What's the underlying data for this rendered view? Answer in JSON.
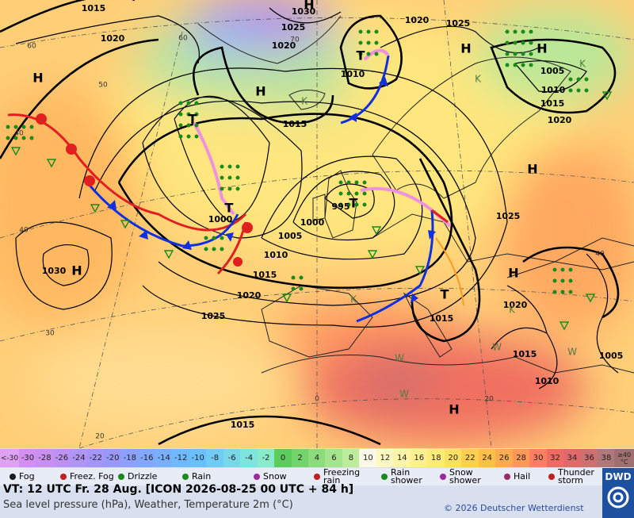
{
  "map": {
    "isobar_labels": [
      "1015",
      "1020",
      "1030",
      "1025",
      "1020",
      "1015",
      "1010",
      "1020",
      "1025",
      "1005",
      "1010",
      "1015",
      "1020",
      "1025",
      "1000",
      "995",
      "1000",
      "1005",
      "1010",
      "1015",
      "1020",
      "1025",
      "1030",
      "1015",
      "1020",
      "1015",
      "1010",
      "1005",
      "1015"
    ],
    "pressure_centers": [
      "H",
      "H",
      "T",
      "T",
      "T",
      "T",
      "H",
      "H",
      "H",
      "T",
      "H",
      "H",
      "H",
      "H"
    ],
    "grid_labels": [
      "60",
      "50",
      "40",
      "40",
      "30",
      "20",
      "0",
      "20",
      "40",
      "60",
      "70"
    ],
    "small_letters": [
      "K",
      "K",
      "K",
      "K",
      "K",
      "W",
      "W",
      "W",
      "W"
    ]
  },
  "legend": {
    "temperature_scale": {
      "low_label": "<-30",
      "values": [
        -30,
        -28,
        -26,
        -24,
        -22,
        -20,
        -18,
        -16,
        -14,
        -12,
        -10,
        -8,
        -6,
        -4,
        -2,
        0,
        2,
        4,
        6,
        8,
        10,
        12,
        14,
        16,
        18,
        20,
        22,
        24,
        26,
        28,
        30,
        32,
        34,
        36,
        38
      ],
      "colors": [
        "#d38ef2",
        "#c990f2",
        "#bd92f4",
        "#b094f6",
        "#a496f8",
        "#9898fa",
        "#8ca0fc",
        "#80a8ff",
        "#78b0ff",
        "#70b8ff",
        "#68c0ff",
        "#70ccf5",
        "#78d8ea",
        "#80e4de",
        "#88eccc",
        "#5ccc5c",
        "#74d46c",
        "#8cdc7c",
        "#a4e48c",
        "#bcec9c",
        "#fafae6",
        "#fff8c0",
        "#fff4a8",
        "#fff090",
        "#ffec78",
        "#ffe060",
        "#ffd050",
        "#ffc048",
        "#ffac50",
        "#ff9858",
        "#ff8060",
        "#f06a64",
        "#e06a6a",
        "#cc7070",
        "#b07878"
      ],
      "high_label": "≥40",
      "unit": "°C"
    },
    "weather": [
      "Fog",
      "Freez. Fog",
      "Drizzle",
      "Rain",
      "Snow",
      "Freezing rain",
      "Rain shower",
      "Snow shower",
      "Hail",
      "Thunder storm"
    ]
  },
  "footer": {
    "valid_time": "VT: 12 UTC Fr.  28 Aug. [ICON 2026-08-25  00 UTC + 84 h]",
    "description": "Sea level pressure (hPa), Weather, Temperature 2m (°C)",
    "copyright": "© 2026 Deutscher Wetterdienst",
    "logo": "DWD"
  }
}
